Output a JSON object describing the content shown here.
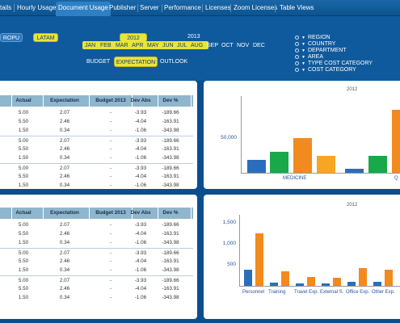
{
  "nav": {
    "tabs": [
      "tails",
      "Hourly Usage",
      "Document Usage",
      "Publisher",
      "Server",
      "Performance",
      "Licenses",
      "Zoom Licenses",
      "Table Views"
    ],
    "active": "Document Usage"
  },
  "filters": {
    "regions": [
      "ROPU",
      "LATAM"
    ],
    "years": [
      "2012",
      "2013"
    ],
    "months": [
      "JAN",
      "FEB",
      "MAR",
      "APR",
      "MAY",
      "JUN",
      "JUL",
      "AUG",
      "SEP",
      "OCT",
      "NOV",
      "DEC"
    ],
    "scenarios": [
      "BUDGET",
      "EXPECTATION",
      "OUTLOOK"
    ],
    "selected_scenario": "EXPECTATION",
    "dimensions": [
      "REGION",
      "COUNTRY",
      "DEPARTMENT",
      "AREA",
      "TYPE COST CATEGORY",
      "COST CATEGORY"
    ]
  },
  "table": {
    "headers": [
      "Actual",
      "Expectation",
      "Budget 2013",
      "Dev Abs",
      "Dev %"
    ],
    "rows": [
      [
        "5.00",
        "2.07",
        "-",
        "-3.93",
        "-189.66"
      ],
      [
        "5.50",
        "2.46",
        "-",
        "-4.04",
        "-163.91"
      ],
      [
        "1.50",
        "0.34",
        "-",
        "-1.06",
        "-343.98"
      ],
      [
        "5.00",
        "2.07",
        "-",
        "-3.93",
        "-189.66"
      ],
      [
        "5.50",
        "2.46",
        "-",
        "-4.04",
        "-163.91"
      ],
      [
        "1.50",
        "0.34",
        "-",
        "-1.06",
        "-343.98"
      ],
      [
        "5.00",
        "2.07",
        "-",
        "-3.93",
        "-189.66"
      ],
      [
        "5.50",
        "2.46",
        "-",
        "-4.04",
        "-163.91"
      ],
      [
        "1.50",
        "0.34",
        "-",
        "-1.06",
        "-343.98"
      ]
    ]
  },
  "chart_data": [
    {
      "type": "bar",
      "title": "2012",
      "ytick_labels": [
        "50,000"
      ],
      "ytick_values": [
        50000
      ],
      "ylim": [
        0,
        110000
      ],
      "categories": [
        "MEDICINE",
        "Q"
      ],
      "bars": [
        {
          "category": "MEDICINE",
          "value": 18000,
          "color": "#2a6ebb"
        },
        {
          "category": "MEDICINE",
          "value": 30000,
          "color": "#19a84a"
        },
        {
          "category": "MEDICINE",
          "value": 50000,
          "color": "#f28a1e"
        },
        {
          "category": "MEDICINE",
          "value": 24000,
          "color": "#f6a623"
        },
        {
          "category": "Q",
          "value": 6000,
          "color": "#2a6ebb"
        },
        {
          "category": "Q",
          "value": 24000,
          "color": "#19a84a"
        },
        {
          "category": "Q",
          "value": 90000,
          "color": "#f28a1e"
        }
      ]
    },
    {
      "type": "bar",
      "title": "2012",
      "ytick_labels": [
        "1,500",
        "1,000",
        "500"
      ],
      "ytick_values": [
        1500,
        1000,
        500
      ],
      "ylim": [
        0,
        1700
      ],
      "categories": [
        "Personnel",
        "Training",
        "Travel Exp.",
        "External S.",
        "Office Exp.",
        "Other Exp."
      ],
      "series": [
        {
          "name": "",
          "color": "#2a6ebb",
          "values": [
            380,
            70,
            60,
            60,
            90,
            100
          ]
        },
        {
          "name": "",
          "color": "#f28a1e",
          "values": [
            1250,
            340,
            210,
            190,
            430,
            380
          ]
        }
      ]
    }
  ]
}
